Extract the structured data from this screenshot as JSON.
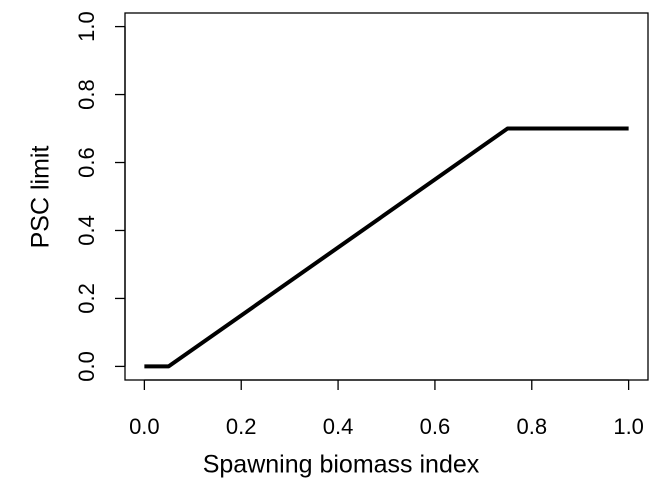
{
  "chart_data": {
    "type": "line",
    "x_label": "Spawning biomass index",
    "y_label": "PSC limit",
    "x": [
      0,
      0.05,
      0.75,
      1.0
    ],
    "series": [
      {
        "name": "PSC limit",
        "color": "#000000",
        "values": [
          0,
          0,
          0.7,
          0.7
        ]
      }
    ],
    "xlim": [
      -0.04,
      1.04
    ],
    "ylim": [
      -0.04,
      1.04
    ],
    "xticks": [
      {
        "value": 0,
        "label": "0.0"
      },
      0.2,
      0.4,
      0.6,
      0.8,
      {
        "value": 1,
        "label": "1.0"
      }
    ],
    "yticks": [
      {
        "value": 0,
        "label": "0.0"
      },
      0.2,
      0.4,
      0.6,
      0.8,
      {
        "value": 1,
        "label": "1.0"
      }
    ],
    "grid": false
  }
}
